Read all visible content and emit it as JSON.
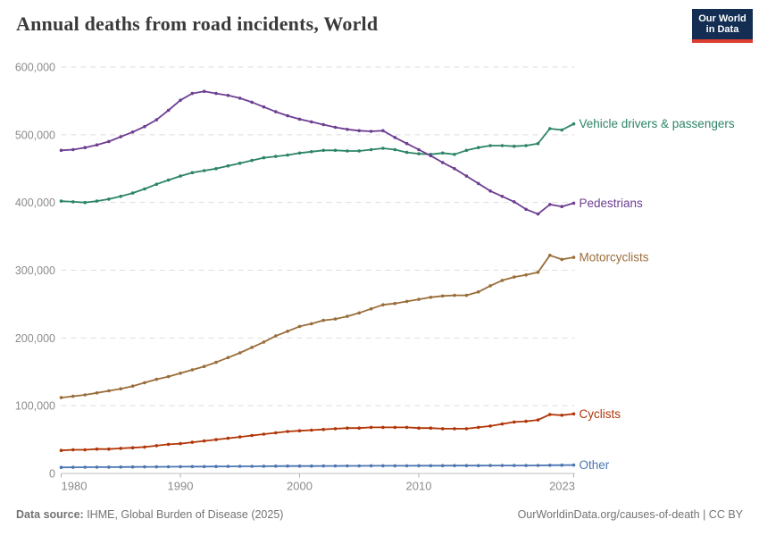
{
  "header": {
    "title": "Annual deaths from road incidents, World",
    "logo": {
      "line1": "Our World",
      "line2": "in Data"
    }
  },
  "footer": {
    "source_label": "Data source:",
    "source_value": " IHME, Global Burden of Disease (2025)",
    "right_text": "OurWorldinData.org/causes-of-death | CC BY"
  },
  "chart_data": {
    "type": "line",
    "title": "Annual deaths from road incidents, World",
    "xlabel": "",
    "ylabel": "",
    "grid": true,
    "legend_position": "right-end-labels",
    "ylim": [
      0,
      600000
    ],
    "yticks": [
      0,
      100000,
      200000,
      300000,
      400000,
      500000,
      600000
    ],
    "ytick_labels": [
      "0",
      "100,000",
      "200,000",
      "300,000",
      "400,000",
      "500,000",
      "600,000"
    ],
    "xticks": [
      1980,
      1990,
      2000,
      2010,
      2023
    ],
    "x": [
      1980,
      1981,
      1982,
      1983,
      1984,
      1985,
      1986,
      1987,
      1988,
      1989,
      1990,
      1991,
      1992,
      1993,
      1994,
      1995,
      1996,
      1997,
      1998,
      1999,
      2000,
      2001,
      2002,
      2003,
      2004,
      2005,
      2006,
      2007,
      2008,
      2009,
      2010,
      2011,
      2012,
      2013,
      2014,
      2015,
      2016,
      2017,
      2018,
      2019,
      2020,
      2021,
      2022,
      2023
    ],
    "series": [
      {
        "name": "Vehicle drivers & passengers",
        "color": "#2C8465",
        "values": [
          402000,
          401000,
          400000,
          402000,
          405000,
          409000,
          414000,
          420000,
          427000,
          433000,
          439000,
          444000,
          447000,
          450000,
          454000,
          458000,
          462000,
          466000,
          468000,
          470000,
          473000,
          475000,
          477000,
          477000,
          476000,
          476000,
          478000,
          480000,
          478000,
          474000,
          472000,
          471000,
          473000,
          471000,
          477000,
          481000,
          484000,
          484000,
          483000,
          484000,
          487000,
          509000,
          507000,
          516000
        ]
      },
      {
        "name": "Pedestrians",
        "color": "#6D3E91",
        "values": [
          477000,
          478000,
          481000,
          485000,
          490000,
          497000,
          504000,
          512000,
          522000,
          536000,
          551000,
          561000,
          564000,
          561000,
          558000,
          554000,
          548000,
          541000,
          534000,
          528000,
          523000,
          519000,
          515000,
          511000,
          508000,
          506000,
          505000,
          506000,
          496000,
          487000,
          478000,
          469000,
          459000,
          450000,
          439000,
          428000,
          417000,
          409000,
          401000,
          390000,
          383000,
          397000,
          394000,
          399000
        ]
      },
      {
        "name": "Motorcyclists",
        "color": "#996D39",
        "values": [
          112000,
          114000,
          116000,
          119000,
          122000,
          125000,
          129000,
          134000,
          139000,
          143000,
          148000,
          153000,
          158000,
          164000,
          171000,
          178000,
          186000,
          194000,
          203000,
          210000,
          217000,
          221000,
          226000,
          228000,
          232000,
          237000,
          243000,
          249000,
          251000,
          254000,
          257000,
          260000,
          262000,
          263000,
          263000,
          268000,
          277000,
          285000,
          290000,
          293000,
          297000,
          322000,
          316000,
          319000
        ]
      },
      {
        "name": "Cyclists",
        "color": "#B13507",
        "values": [
          34000,
          35000,
          35000,
          36000,
          36000,
          37000,
          38000,
          39000,
          41000,
          43000,
          44000,
          46000,
          48000,
          50000,
          52000,
          54000,
          56000,
          58000,
          60000,
          62000,
          63000,
          64000,
          65000,
          66000,
          67000,
          67000,
          68000,
          68000,
          68000,
          68000,
          67000,
          67000,
          66000,
          66000,
          66000,
          68000,
          70000,
          73000,
          76000,
          77000,
          79000,
          87000,
          86000,
          88000
        ]
      },
      {
        "name": "Other",
        "color": "#4C75B0",
        "values": [
          9000,
          9100,
          9200,
          9300,
          9400,
          9500,
          9600,
          9700,
          9800,
          9900,
          10000,
          10100,
          10200,
          10300,
          10400,
          10500,
          10600,
          10700,
          10800,
          10900,
          11000,
          11000,
          11100,
          11100,
          11200,
          11200,
          11300,
          11300,
          11400,
          11400,
          11500,
          11500,
          11500,
          11600,
          11600,
          11600,
          11700,
          11700,
          11800,
          11800,
          11900,
          12100,
          12200,
          12400
        ]
      }
    ]
  }
}
